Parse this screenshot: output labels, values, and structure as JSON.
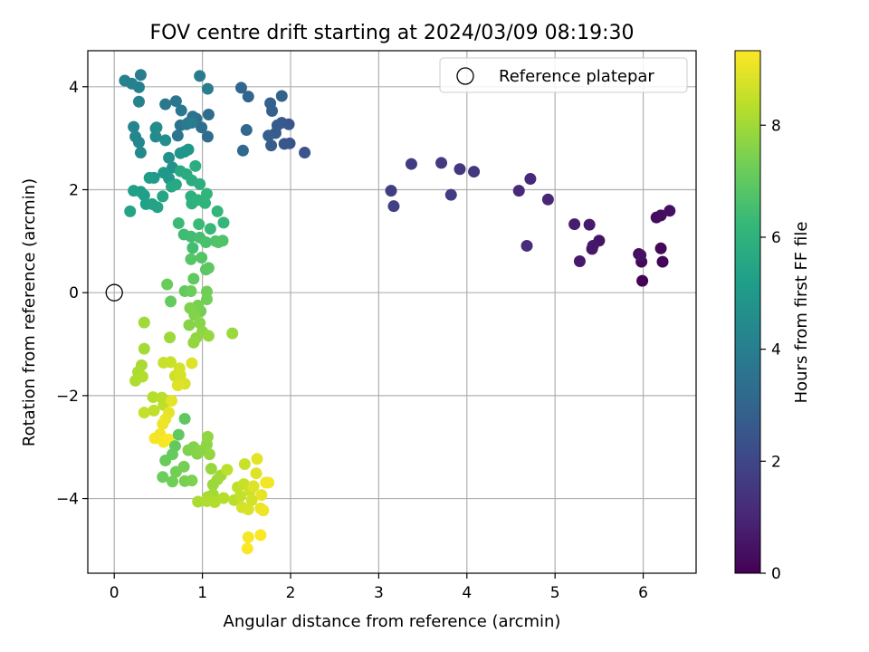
{
  "chart_data": {
    "type": "scatter",
    "title": "FOV centre drift starting at 2024/03/09 08:19:30",
    "xlabel": "Angular distance from reference (arcmin)",
    "ylabel": "Rotation from reference (arcmin)",
    "xlim": [
      -0.3,
      6.6
    ],
    "ylim": [
      -5.45,
      4.7
    ],
    "xticks": [
      0,
      1,
      2,
      3,
      4,
      5,
      6
    ],
    "yticks": [
      -4,
      -2,
      0,
      2,
      4
    ],
    "xtick_labels": [
      "0",
      "1",
      "2",
      "3",
      "4",
      "5",
      "6"
    ],
    "ytick_labels": [
      "−4",
      "−2",
      "0",
      "2",
      "4"
    ],
    "grid": true,
    "legend": {
      "placement": "top-right",
      "entries": [
        "Reference platepar"
      ]
    },
    "colorbar": {
      "label": "Hours from first FF file",
      "min": 0,
      "max": 9.33,
      "ticks": [
        0,
        2,
        4,
        6,
        8
      ],
      "tick_labels": [
        "0",
        "2",
        "4",
        "6",
        "8"
      ],
      "colormap": "viridis",
      "colors": [
        "#440154",
        "#482878",
        "#3e4989",
        "#31688e",
        "#26828e",
        "#1f9e89",
        "#35b779",
        "#6ece58",
        "#b5de2b",
        "#fde725"
      ]
    },
    "reference_point": {
      "x": 0,
      "y": 0
    },
    "series": [
      {
        "segment": "early",
        "points": [
          [
            5.99,
            0.23,
            0.05
          ],
          [
            6.22,
            0.6,
            0.1
          ],
          [
            6.2,
            0.86,
            0.15
          ],
          [
            5.98,
            0.6,
            0.2
          ],
          [
            5.95,
            0.75,
            0.25
          ],
          [
            6.15,
            1.46,
            0.3
          ],
          [
            6.2,
            1.5,
            0.35
          ],
          [
            6.3,
            1.59,
            0.4
          ],
          [
            5.97,
            0.73,
            0.45
          ],
          [
            5.5,
            1.01,
            0.5
          ],
          [
            5.42,
            0.85,
            0.55
          ],
          [
            5.43,
            0.91,
            0.6
          ],
          [
            5.28,
            0.61,
            0.65
          ],
          [
            5.39,
            1.32,
            0.7
          ],
          [
            5.22,
            1.33,
            0.75
          ],
          [
            4.92,
            1.81,
            1.0
          ],
          [
            4.72,
            2.21,
            1.05
          ],
          [
            4.59,
            1.98,
            1.1
          ],
          [
            4.68,
            0.91,
            1.15
          ],
          [
            4.08,
            2.35,
            1.5
          ],
          [
            3.92,
            2.4,
            1.55
          ],
          [
            3.71,
            2.52,
            1.6
          ],
          [
            3.82,
            1.9,
            1.65
          ],
          [
            3.37,
            2.5,
            1.7
          ],
          [
            3.14,
            1.98,
            1.75
          ],
          [
            3.17,
            1.68,
            1.8
          ],
          [
            2.16,
            2.72,
            2.4
          ],
          [
            1.99,
            2.9,
            2.45
          ],
          [
            1.98,
            3.27,
            2.5
          ],
          [
            1.93,
            2.89,
            2.55
          ],
          [
            1.9,
            3.3,
            2.6
          ],
          [
            1.85,
            3.25,
            2.65
          ],
          [
            1.83,
            3.1,
            2.7
          ],
          [
            1.78,
            2.86,
            2.75
          ],
          [
            1.75,
            3.05,
            2.8
          ],
          [
            1.79,
            3.53,
            2.85
          ],
          [
            1.77,
            3.68,
            2.9
          ],
          [
            1.9,
            3.82,
            2.95
          ],
          [
            1.52,
            3.81,
            3.0
          ],
          [
            1.44,
            3.98,
            3.05
          ],
          [
            1.5,
            3.16,
            3.1
          ],
          [
            1.46,
            2.76,
            3.15
          ],
          [
            1.06,
            3.03,
            3.25
          ],
          [
            1.07,
            3.46,
            3.3
          ],
          [
            0.99,
            3.21,
            3.35
          ],
          [
            0.93,
            3.38,
            3.4
          ],
          [
            0.89,
            3.42,
            3.45
          ],
          [
            0.84,
            3.3,
            3.5
          ],
          [
            0.75,
            3.25,
            3.55
          ],
          [
            0.72,
            3.05,
            3.6
          ],
          [
            0.7,
            3.72,
            3.65
          ],
          [
            0.58,
            3.66,
            3.7
          ],
          [
            0.76,
            3.54,
            3.75
          ],
          [
            0.82,
            3.27,
            3.8
          ],
          [
            0.88,
            3.3,
            3.85
          ],
          [
            0.97,
            4.21,
            3.9
          ],
          [
            1.06,
            3.96,
            3.95
          ],
          [
            0.3,
            4.23,
            4.0
          ],
          [
            0.28,
            3.99,
            4.05
          ],
          [
            0.2,
            4.06,
            4.1
          ],
          [
            0.12,
            4.12,
            4.15
          ],
          [
            0.28,
            3.71,
            4.2
          ],
          [
            0.22,
            3.22,
            4.25
          ],
          [
            0.24,
            3.03,
            4.3
          ],
          [
            0.28,
            2.92,
            4.35
          ],
          [
            0.3,
            2.72,
            4.4
          ],
          [
            0.47,
            3.03,
            4.45
          ],
          [
            0.47,
            3.19,
            4.5
          ],
          [
            0.48,
            3.21,
            4.55
          ],
          [
            0.58,
            2.96,
            4.6
          ]
        ]
      },
      {
        "segment": "middle",
        "points": [
          [
            0.62,
            2.62,
            4.7
          ],
          [
            0.66,
            2.43,
            4.75
          ],
          [
            0.75,
            2.71,
            4.8
          ],
          [
            0.8,
            2.74,
            4.85
          ],
          [
            0.84,
            2.78,
            4.9
          ],
          [
            0.62,
            2.22,
            4.95
          ],
          [
            0.56,
            2.33,
            5.0
          ],
          [
            0.45,
            2.23,
            5.05
          ],
          [
            0.4,
            2.23,
            5.1
          ],
          [
            0.3,
            1.96,
            5.15
          ],
          [
            0.22,
            1.98,
            5.2
          ],
          [
            0.34,
            1.89,
            5.25
          ],
          [
            0.36,
            1.72,
            5.3
          ],
          [
            0.43,
            1.72,
            5.35
          ],
          [
            0.49,
            1.66,
            5.4
          ],
          [
            0.18,
            1.58,
            5.45
          ],
          [
            0.55,
            1.87,
            5.5
          ],
          [
            0.65,
            2.06,
            5.55
          ],
          [
            0.7,
            2.1,
            5.6
          ],
          [
            0.75,
            2.36,
            5.65
          ],
          [
            0.82,
            2.3,
            5.7
          ],
          [
            0.88,
            2.18,
            5.75
          ],
          [
            0.92,
            2.46,
            5.8
          ],
          [
            0.97,
            2.11,
            5.85
          ],
          [
            0.87,
            1.87,
            5.9
          ],
          [
            0.88,
            1.73,
            5.95
          ],
          [
            0.95,
            1.8,
            6.0
          ],
          [
            1.03,
            1.74,
            6.05
          ],
          [
            1.05,
            1.92,
            6.1
          ],
          [
            1.17,
            1.58,
            6.15
          ],
          [
            1.24,
            1.36,
            6.2
          ],
          [
            1.09,
            1.24,
            6.25
          ],
          [
            0.96,
            1.33,
            6.3
          ],
          [
            0.73,
            1.35,
            6.35
          ],
          [
            0.79,
            1.13,
            6.4
          ],
          [
            0.87,
            1.09,
            6.45
          ],
          [
            0.89,
            0.87,
            6.5
          ],
          [
            0.97,
            1.07,
            6.55
          ],
          [
            1.04,
            0.98,
            6.6
          ],
          [
            1.15,
            1.0,
            6.65
          ],
          [
            1.23,
            1.01,
            6.7
          ],
          [
            1.18,
            0.98,
            6.75
          ],
          [
            0.99,
            0.68,
            6.8
          ],
          [
            0.87,
            0.65,
            6.85
          ],
          [
            1.04,
            0.45,
            6.9
          ],
          [
            1.07,
            0.48,
            6.95
          ],
          [
            0.9,
            0.27,
            7.0
          ],
          [
            0.8,
            0.03,
            7.05
          ],
          [
            0.64,
            -0.17,
            7.1
          ],
          [
            0.6,
            0.16,
            7.15
          ],
          [
            0.87,
            0.03,
            7.2
          ],
          [
            1.05,
            0.02,
            7.25
          ],
          [
            1.05,
            -0.13,
            7.3
          ],
          [
            0.98,
            -0.36,
            7.35
          ],
          [
            0.95,
            -0.25,
            7.4
          ],
          [
            0.9,
            -0.36,
            7.45
          ],
          [
            0.86,
            -0.3,
            7.5
          ],
          [
            0.91,
            -0.43,
            7.55
          ],
          [
            0.85,
            -0.63,
            7.6
          ],
          [
            0.97,
            -0.59,
            7.65
          ],
          [
            1.0,
            -0.76,
            7.7
          ],
          [
            0.93,
            -0.88,
            7.75
          ],
          [
            0.9,
            -0.97,
            7.8
          ],
          [
            1.07,
            -0.84,
            7.85
          ],
          [
            1.34,
            -0.79,
            7.9
          ],
          [
            0.63,
            -0.87,
            7.95
          ]
        ]
      },
      {
        "segment": "late",
        "points": [
          [
            0.34,
            -0.58,
            8.0
          ],
          [
            0.34,
            -1.09,
            8.05
          ],
          [
            0.31,
            -1.41,
            8.1
          ],
          [
            0.27,
            -1.54,
            8.15
          ],
          [
            0.24,
            -1.71,
            8.2
          ],
          [
            0.32,
            -1.63,
            8.25
          ],
          [
            0.44,
            -2.03,
            8.3
          ],
          [
            0.54,
            -2.04,
            8.35
          ],
          [
            0.56,
            -2.18,
            8.4
          ],
          [
            0.45,
            -2.29,
            8.45
          ],
          [
            0.34,
            -2.33,
            8.5
          ],
          [
            0.56,
            -1.36,
            8.55
          ],
          [
            0.64,
            -1.35,
            8.6
          ],
          [
            0.69,
            -1.62,
            8.65
          ],
          [
            0.74,
            -1.47,
            8.7
          ],
          [
            0.75,
            -1.6,
            8.75
          ],
          [
            0.8,
            -1.77,
            8.8
          ],
          [
            0.88,
            -1.37,
            8.85
          ],
          [
            0.72,
            -1.8,
            8.9
          ],
          [
            0.65,
            -2.1,
            8.95
          ],
          [
            0.62,
            -2.33,
            9.0
          ],
          [
            0.58,
            -2.46,
            9.05
          ],
          [
            0.55,
            -2.55,
            9.1
          ],
          [
            0.52,
            -2.75,
            9.15
          ],
          [
            0.46,
            -2.83,
            9.2
          ],
          [
            0.56,
            -2.9,
            9.25
          ],
          [
            0.62,
            -2.85,
            9.3
          ]
        ]
      },
      {
        "segment": "final",
        "points": [
          [
            0.8,
            -2.45,
            6.95
          ],
          [
            0.73,
            -2.76,
            7.0
          ],
          [
            0.69,
            -2.98,
            7.05
          ],
          [
            0.66,
            -3.14,
            7.1
          ],
          [
            0.58,
            -3.26,
            7.15
          ],
          [
            0.55,
            -3.58,
            7.2
          ],
          [
            0.66,
            -3.67,
            7.25
          ],
          [
            0.7,
            -3.48,
            7.3
          ],
          [
            0.79,
            -3.38,
            7.35
          ],
          [
            0.8,
            -3.66,
            7.4
          ],
          [
            0.88,
            -3.65,
            7.45
          ],
          [
            0.84,
            -3.06,
            7.5
          ],
          [
            0.9,
            -3.0,
            7.55
          ],
          [
            0.94,
            -3.13,
            7.6
          ],
          [
            0.98,
            -3.07,
            7.65
          ],
          [
            1.05,
            -2.95,
            7.7
          ],
          [
            1.06,
            -2.8,
            7.75
          ],
          [
            1.08,
            -3.14,
            7.8
          ],
          [
            1.1,
            -3.42,
            7.85
          ],
          [
            1.12,
            -3.73,
            7.9
          ],
          [
            1.17,
            -3.63,
            7.95
          ],
          [
            1.21,
            -3.55,
            8.0
          ],
          [
            1.12,
            -3.92,
            8.05
          ],
          [
            1.06,
            -3.97,
            8.1
          ],
          [
            0.95,
            -4.06,
            8.15
          ],
          [
            1.05,
            -4.05,
            8.2
          ],
          [
            1.14,
            -4.07,
            8.25
          ],
          [
            1.24,
            -3.99,
            8.3
          ],
          [
            1.36,
            -4.03,
            8.35
          ],
          [
            1.28,
            -3.44,
            8.4
          ],
          [
            1.4,
            -3.78,
            8.45
          ],
          [
            1.43,
            -3.95,
            8.5
          ],
          [
            1.47,
            -3.72,
            8.55
          ],
          [
            1.48,
            -3.33,
            8.6
          ],
          [
            1.54,
            -3.85,
            8.65
          ],
          [
            1.56,
            -4.03,
            8.7
          ],
          [
            1.45,
            -4.17,
            8.75
          ],
          [
            1.52,
            -4.21,
            8.8
          ],
          [
            1.58,
            -3.76,
            8.85
          ],
          [
            1.61,
            -3.51,
            8.9
          ],
          [
            1.62,
            -3.23,
            8.95
          ],
          [
            1.67,
            -3.93,
            9.0
          ],
          [
            1.66,
            -4.19,
            9.05
          ],
          [
            1.69,
            -4.23,
            9.1
          ],
          [
            1.72,
            -3.69,
            9.15
          ],
          [
            1.75,
            -3.69,
            9.2
          ],
          [
            1.52,
            -4.75,
            9.25
          ],
          [
            1.51,
            -4.97,
            9.28
          ],
          [
            1.66,
            -4.71,
            9.3
          ]
        ]
      }
    ]
  }
}
